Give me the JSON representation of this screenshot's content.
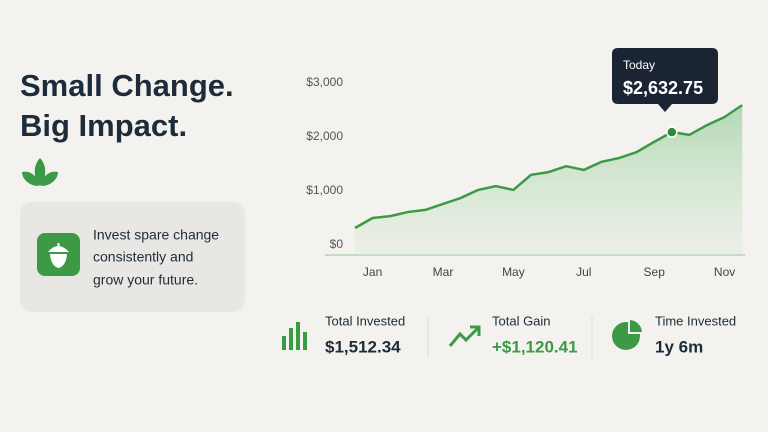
{
  "header": {
    "line1": "Small Change.",
    "line2": "Big Impact."
  },
  "card": {
    "lines": [
      "Invest spare change",
      "consistently and",
      "grow your future."
    ]
  },
  "chart_data": {
    "type": "line",
    "categories": [
      null,
      "Jan",
      null,
      null,
      null,
      "Mar",
      null,
      null,
      null,
      "May",
      null,
      null,
      null,
      "Jul",
      null,
      null,
      null,
      "Sep",
      null,
      null,
      null,
      "Nov",
      null
    ],
    "series": [
      {
        "color": "#3c9a46",
        "values": [
          315,
          500,
          535,
          610,
          650,
          760,
          870,
          1020,
          1090,
          1020,
          1300,
          1350,
          1460,
          1390,
          1540,
          1610,
          1720,
          1910,
          2090,
          2040,
          2220,
          2370,
          2590
        ]
      }
    ],
    "ylim": [
      0,
      3000
    ],
    "yticks": [
      {
        "value": 0,
        "label": "$0"
      },
      {
        "value": 1000,
        "label": "$1,000"
      },
      {
        "value": 2000,
        "label": "$2,000"
      },
      {
        "value": 3000,
        "label": "$3,000"
      }
    ],
    "tooltip": {
      "label": "Today",
      "value": 2632.75,
      "value_label": "$2,632.75"
    }
  },
  "stats": [
    {
      "label": "Total Invested",
      "value": "$1,512.34"
    },
    {
      "label": "Total Gain",
      "value": "+$1,120.41"
    },
    {
      "label": "Time Invested",
      "value": "1y 6m"
    }
  ]
}
